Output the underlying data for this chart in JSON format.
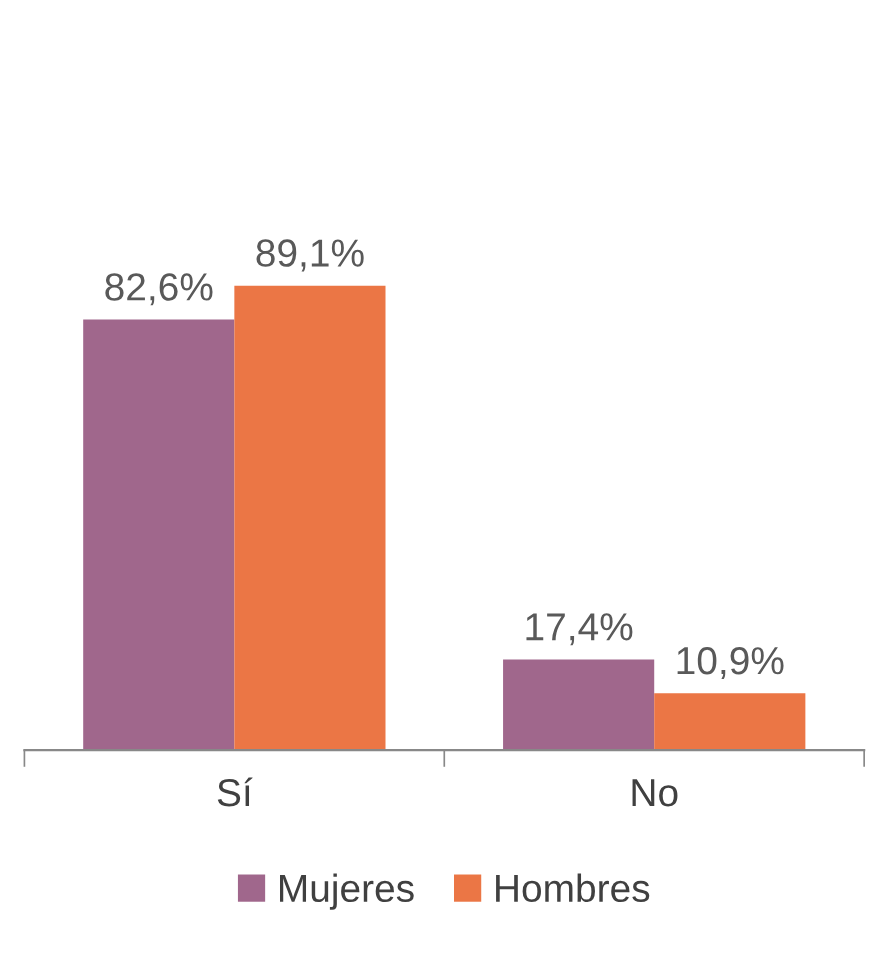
{
  "chart_data": {
    "type": "bar",
    "categories": [
      "Sí",
      "No"
    ],
    "series": [
      {
        "name": "Mujeres",
        "color": "#a0678c",
        "values": [
          82.6,
          17.4
        ],
        "value_labels": [
          "82,6%",
          "17,4%"
        ]
      },
      {
        "name": "Hombres",
        "color": "#eb7645",
        "values": [
          89.1,
          10.9
        ],
        "value_labels": [
          "89,1%",
          "10,9%"
        ]
      }
    ],
    "legend": "bottom",
    "grid": false
  }
}
